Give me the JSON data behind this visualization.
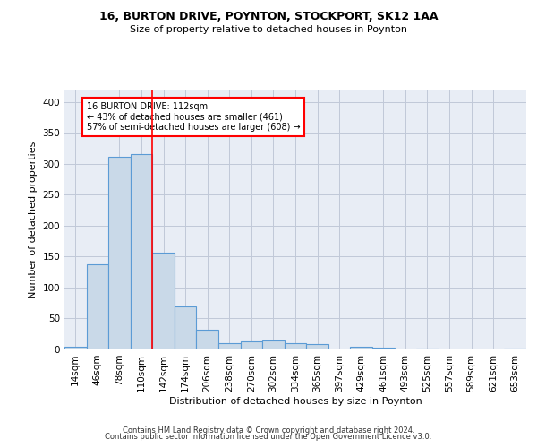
{
  "title1": "16, BURTON DRIVE, POYNTON, STOCKPORT, SK12 1AA",
  "title2": "Size of property relative to detached houses in Poynton",
  "xlabel": "Distribution of detached houses by size in Poynton",
  "ylabel": "Number of detached properties",
  "footer1": "Contains HM Land Registry data © Crown copyright and database right 2024.",
  "footer2": "Contains public sector information licensed under the Open Government Licence v3.0.",
  "categories": [
    "14sqm",
    "46sqm",
    "78sqm",
    "110sqm",
    "142sqm",
    "174sqm",
    "206sqm",
    "238sqm",
    "270sqm",
    "302sqm",
    "334sqm",
    "365sqm",
    "397sqm",
    "429sqm",
    "461sqm",
    "493sqm",
    "525sqm",
    "557sqm",
    "589sqm",
    "621sqm",
    "653sqm"
  ],
  "values": [
    4,
    137,
    311,
    316,
    157,
    70,
    32,
    10,
    13,
    14,
    10,
    8,
    0,
    5,
    3,
    0,
    2,
    0,
    0,
    0,
    2
  ],
  "bar_color": "#c9d9e8",
  "bar_edge_color": "#5b9bd5",
  "bar_width": 1.0,
  "grid_color": "#c0c8d8",
  "bg_color": "#e8edf5",
  "annotation_text": "16 BURTON DRIVE: 112sqm\n← 43% of detached houses are smaller (461)\n57% of semi-detached houses are larger (608) →",
  "annotation_box_color": "white",
  "annotation_box_edge": "red",
  "red_line_x": 3.5,
  "ylim": [
    0,
    420
  ],
  "yticks": [
    0,
    50,
    100,
    150,
    200,
    250,
    300,
    350,
    400
  ]
}
